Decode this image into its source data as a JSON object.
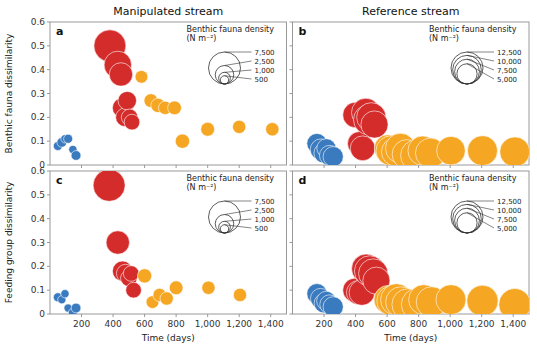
{
  "chart_data": [
    {
      "type": "scatter",
      "title": "Manipulated stream",
      "panel_label": "a",
      "y_label": "Benthic fauna dissimilarity",
      "tick_labels": "y",
      "xlim": [
        0,
        1500
      ],
      "ylim": [
        0,
        0.6
      ],
      "xticks": [
        200,
        400,
        600,
        800,
        {
          "value": 1000,
          "label": "1,000"
        },
        {
          "value": 1200,
          "label": "1,200"
        },
        {
          "value": 1400,
          "label": "1,400"
        }
      ],
      "yticks": [
        0,
        0.1,
        0.2,
        0.3,
        0.4,
        0.5,
        0.6
      ],
      "size_lim": [
        0,
        7500
      ],
      "series": [
        {
          "color": "#3a7abf",
          "x": [
            50,
            75,
            95,
            115,
            145,
            165
          ],
          "values": [
            0.08,
            0.095,
            0.11,
            0.11,
            0.065,
            0.04
          ],
          "sizes": [
            600,
            700,
            500,
            600,
            500,
            700
          ]
        },
        {
          "color": "#d42b2b",
          "x": [
            380,
            430,
            450,
            460,
            475,
            490,
            505,
            520
          ],
          "values": [
            0.5,
            0.42,
            0.38,
            0.24,
            0.2,
            0.27,
            0.2,
            0.18
          ],
          "sizes": [
            7500,
            5500,
            4000,
            3000,
            2500,
            2500,
            2000,
            1800
          ]
        },
        {
          "color": "#f5a623",
          "x": [
            580,
            640,
            685,
            730,
            790,
            840,
            1000,
            1200,
            1410
          ],
          "values": [
            0.37,
            0.27,
            0.25,
            0.24,
            0.24,
            0.1,
            0.15,
            0.16,
            0.15
          ],
          "sizes": [
            1200,
            1400,
            1500,
            1300,
            1400,
            1500,
            1400,
            1300,
            1300
          ]
        }
      ],
      "size_legend": {
        "title": "Benthic fauna density",
        "unit": "(N m⁻²)",
        "values": [
          {
            "value": 7500,
            "label": "7,500"
          },
          {
            "value": 2500,
            "label": "2,500"
          },
          {
            "value": 1000,
            "label": "1,000"
          },
          500
        ]
      }
    },
    {
      "type": "scatter",
      "title": "Reference stream",
      "panel_label": "b",
      "tick_labels": false,
      "xlim": [
        0,
        1500
      ],
      "ylim": [
        0,
        0.6
      ],
      "xticks": [
        200,
        400,
        600,
        800,
        {
          "value": 1000,
          "label": "1,000"
        },
        {
          "value": 1200,
          "label": "1,200"
        },
        {
          "value": 1400,
          "label": "1,400"
        }
      ],
      "yticks": [
        0,
        0.1,
        0.2,
        0.3,
        0.4,
        0.5,
        0.6
      ],
      "size_lim": [
        0,
        12500
      ],
      "series": [
        {
          "color": "#3a7abf",
          "x": [
            155,
            180,
            200,
            215,
            235,
            258
          ],
          "values": [
            0.09,
            0.065,
            0.05,
            0.07,
            0.04,
            0.035
          ],
          "sizes": [
            5000,
            5500,
            5000,
            4500,
            5000,
            5000
          ]
        },
        {
          "color": "#d42b2b",
          "x": [
            400,
            425,
            445,
            465,
            482,
            500,
            520
          ],
          "values": [
            0.21,
            0.09,
            0.07,
            0.22,
            0.19,
            0.2,
            0.17
          ],
          "sizes": [
            8000,
            7000,
            7500,
            10000,
            11000,
            10500,
            9000
          ]
        },
        {
          "color": "#f5a623",
          "x": [
            605,
            625,
            655,
            685,
            725,
            785,
            825,
            875,
            1005,
            1205,
            1410
          ],
          "values": [
            0.07,
            0.06,
            0.055,
            0.07,
            0.045,
            0.04,
            0.06,
            0.05,
            0.06,
            0.06,
            0.055
          ],
          "sizes": [
            9000,
            11000,
            10000,
            11000,
            10500,
            12000,
            10500,
            11000,
            10000,
            11000,
            11000
          ]
        }
      ],
      "size_legend": {
        "title": "Benthic fauna density",
        "unit": "(N m⁻²)",
        "values": [
          {
            "value": 12500,
            "label": "12,500"
          },
          {
            "value": 10000,
            "label": "10,000"
          },
          {
            "value": 7500,
            "label": "7,500"
          },
          {
            "value": 5000,
            "label": "5,000"
          }
        ]
      }
    },
    {
      "type": "scatter",
      "panel_label": "c",
      "y_label": "Feeding group dissimilarity",
      "x_label": "Time (days)",
      "xlim": [
        0,
        1500
      ],
      "ylim": [
        0,
        0.6
      ],
      "xticks": [
        200,
        400,
        600,
        800,
        {
          "value": 1000,
          "label": "1,000"
        },
        {
          "value": 1200,
          "label": "1,200"
        },
        {
          "value": 1400,
          "label": "1,400"
        }
      ],
      "yticks": [
        0,
        0.1,
        0.2,
        0.3,
        0.4,
        0.5,
        0.6
      ],
      "size_lim": [
        0,
        7500
      ],
      "series": [
        {
          "color": "#3a7abf",
          "x": [
            50,
            75,
            95,
            115,
            145,
            165
          ],
          "values": [
            0.07,
            0.06,
            0.085,
            0.025,
            0.005,
            0.025
          ],
          "sizes": [
            600,
            500,
            500,
            500,
            600,
            700
          ]
        },
        {
          "color": "#d42b2b",
          "x": [
            375,
            430,
            460,
            480,
            500,
            515,
            530
          ],
          "values": [
            0.54,
            0.3,
            0.18,
            0.17,
            0.15,
            0.17,
            0.1
          ],
          "sizes": [
            7500,
            4000,
            3000,
            2500,
            2000,
            1800,
            1800
          ]
        },
        {
          "color": "#f5a623",
          "x": [
            600,
            650,
            695,
            740,
            800,
            1005,
            1205
          ],
          "values": [
            0.16,
            0.05,
            0.08,
            0.065,
            0.11,
            0.11,
            0.08
          ],
          "sizes": [
            1500,
            1200,
            1300,
            1300,
            1400,
            1300,
            1300
          ]
        }
      ],
      "size_legend": {
        "title": "Benthic fauna density",
        "unit": "(N m⁻²)",
        "values": [
          {
            "value": 7500,
            "label": "7,500"
          },
          {
            "value": 2500,
            "label": "2,500"
          },
          {
            "value": 1000,
            "label": "1,000"
          },
          500
        ]
      }
    },
    {
      "type": "scatter",
      "panel_label": "d",
      "x_label": "Time (days)",
      "tick_labels": "x",
      "xlim": [
        0,
        1500
      ],
      "ylim": [
        0,
        0.6
      ],
      "xticks": [
        200,
        400,
        600,
        800,
        {
          "value": 1000,
          "label": "1,000"
        },
        {
          "value": 1200,
          "label": "1,200"
        },
        {
          "value": 1400,
          "label": "1,400"
        }
      ],
      "yticks": [
        0,
        0.1,
        0.2,
        0.3,
        0.4,
        0.5,
        0.6
      ],
      "size_lim": [
        0,
        12500
      ],
      "series": [
        {
          "color": "#3a7abf",
          "x": [
            155,
            178,
            198,
            214,
            234,
            258
          ],
          "values": [
            0.085,
            0.065,
            0.045,
            0.055,
            0.04,
            0.03
          ],
          "sizes": [
            5000,
            5000,
            4500,
            4500,
            4500,
            5000
          ]
        },
        {
          "color": "#d42b2b",
          "x": [
            395,
            418,
            440,
            468,
            490,
            512,
            532
          ],
          "values": [
            0.1,
            0.09,
            0.09,
            0.19,
            0.18,
            0.17,
            0.14
          ],
          "sizes": [
            7000,
            7000,
            8000,
            10500,
            11500,
            10500,
            9000
          ]
        },
        {
          "color": "#f5a623",
          "x": [
            608,
            632,
            660,
            688,
            730,
            792,
            832,
            882,
            1005,
            1205,
            1410
          ],
          "values": [
            0.06,
            0.055,
            0.06,
            0.05,
            0.04,
            0.04,
            0.06,
            0.05,
            0.06,
            0.055,
            0.04
          ],
          "sizes": [
            10000,
            11500,
            12500,
            11500,
            12000,
            12500,
            11000,
            11500,
            11000,
            12000,
            12500
          ]
        }
      ],
      "size_legend": {
        "title": "Benthic fauna density",
        "unit": "(N m⁻²)",
        "values": [
          {
            "value": 12500,
            "label": "12,500"
          },
          {
            "value": 10000,
            "label": "10,000"
          },
          {
            "value": 7500,
            "label": "7,500"
          },
          {
            "value": 5000,
            "label": "5,000"
          }
        ]
      }
    }
  ]
}
